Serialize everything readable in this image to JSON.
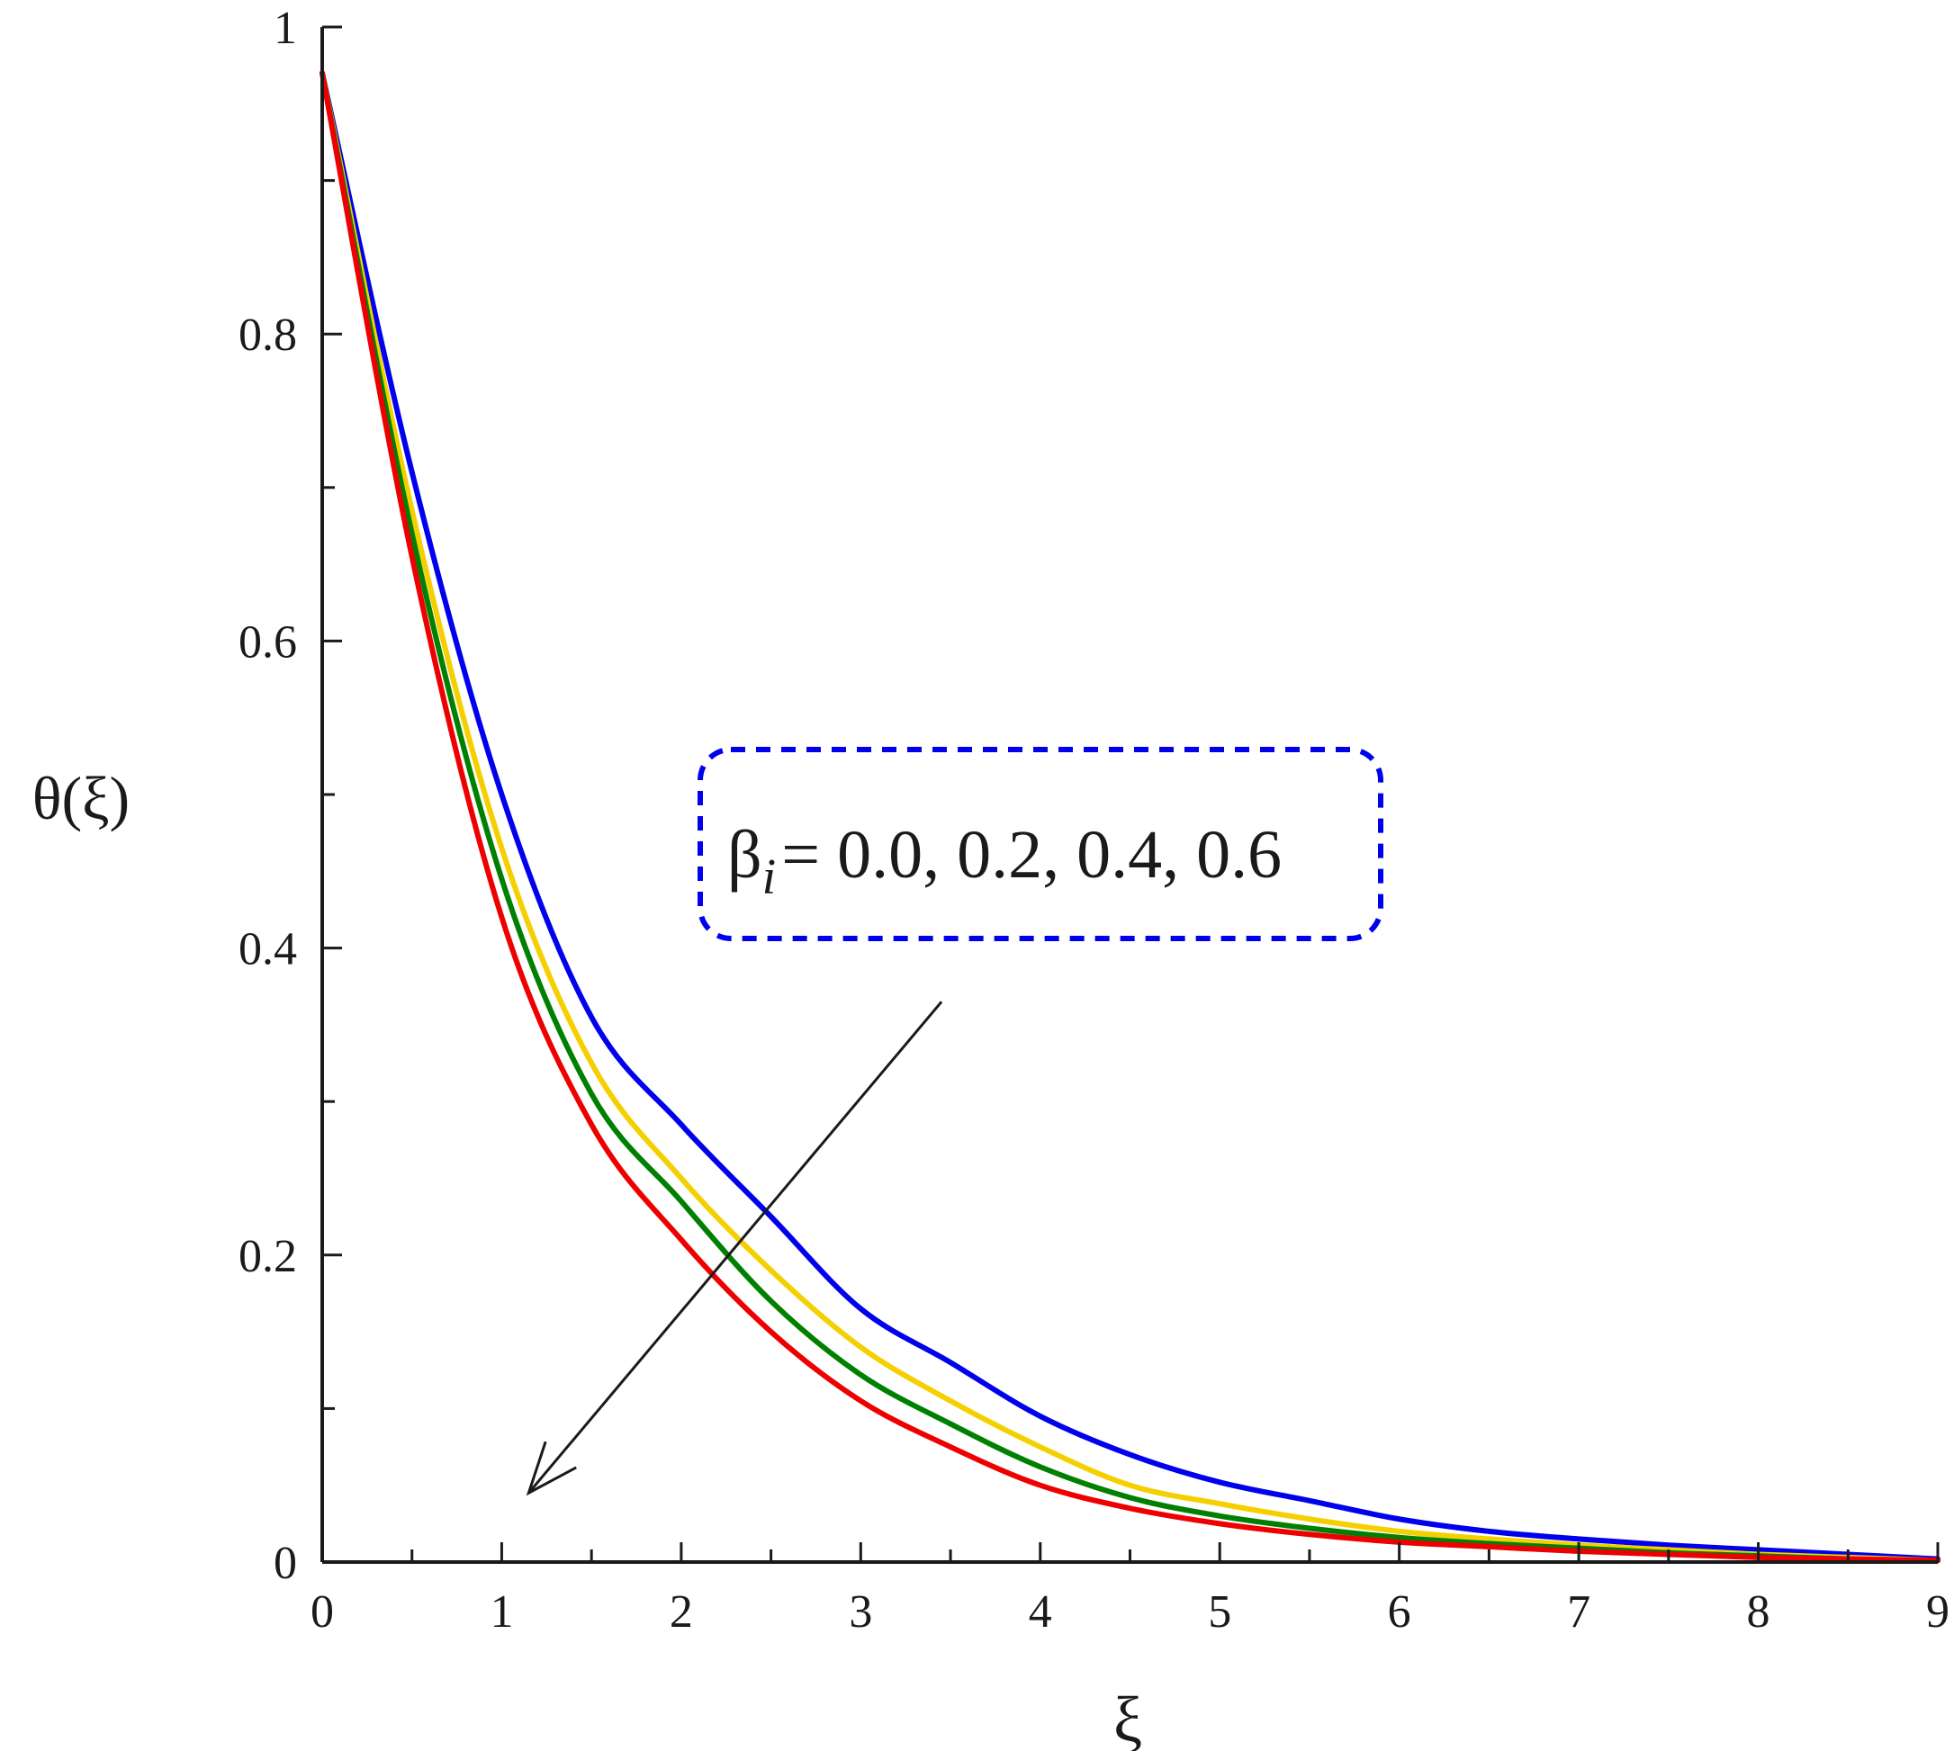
{
  "chart_data": {
    "type": "line",
    "title": "",
    "xlabel": "ξ",
    "ylabel": "θ(ξ)",
    "xlim": [
      0,
      9
    ],
    "ylim": [
      0,
      1
    ],
    "x_ticks": [
      "0",
      "1",
      "2",
      "3",
      "4",
      "5",
      "6",
      "7",
      "8",
      "9"
    ],
    "y_ticks": [
      "0",
      "0.2",
      "0.4",
      "0.6",
      "0.8",
      "1"
    ],
    "grid": false,
    "legend": "none",
    "series": [
      {
        "color": "#0000ee",
        "x": [
          0,
          0.5,
          1,
          1.5,
          2,
          2.5,
          3,
          3.5,
          4,
          4.5,
          5,
          5.5,
          6,
          6.5,
          7,
          7.5,
          8,
          8.5,
          9
        ],
        "y": [
          0.97,
          0.71,
          0.5,
          0.355,
          0.285,
          0.225,
          0.165,
          0.13,
          0.095,
          0.07,
          0.052,
          0.04,
          0.028,
          0.02,
          0.015,
          0.011,
          0.008,
          0.005,
          0.002
        ]
      },
      {
        "color": "#f5d000",
        "x": [
          0,
          0.5,
          1,
          1.5,
          2,
          2.5,
          3,
          3.5,
          4,
          4.5,
          5,
          5.5,
          6,
          6.5,
          7,
          7.5,
          8,
          8.5,
          9
        ],
        "y": [
          0.97,
          0.685,
          0.465,
          0.325,
          0.25,
          0.19,
          0.14,
          0.105,
          0.075,
          0.05,
          0.038,
          0.028,
          0.02,
          0.015,
          0.011,
          0.008,
          0.005,
          0.003,
          0.001
        ]
      },
      {
        "color": "#008000",
        "x": [
          0,
          0.5,
          1,
          1.5,
          2,
          2.5,
          3,
          3.5,
          4,
          4.5,
          5,
          5.5,
          6,
          6.5,
          7,
          7.5,
          8,
          8.5,
          9
        ],
        "y": [
          0.97,
          0.67,
          0.445,
          0.305,
          0.235,
          0.17,
          0.122,
          0.09,
          0.062,
          0.042,
          0.03,
          0.022,
          0.016,
          0.012,
          0.009,
          0.006,
          0.004,
          0.002,
          0.001
        ]
      },
      {
        "color": "#ee0000",
        "x": [
          0,
          0.5,
          1,
          1.5,
          2,
          2.5,
          3,
          3.5,
          4,
          4.5,
          5,
          5.5,
          6,
          6.5,
          7,
          7.5,
          8,
          8.5,
          9
        ],
        "y": [
          0.97,
          0.655,
          0.42,
          0.285,
          0.21,
          0.15,
          0.105,
          0.075,
          0.05,
          0.035,
          0.025,
          0.018,
          0.013,
          0.01,
          0.007,
          0.005,
          0.003,
          0.002,
          0.001
        ]
      }
    ],
    "annotation": {
      "symbol": "β",
      "subscript": "i",
      "text": "= 0.0, 0.2, 0.4, 0.6",
      "box_color": "#0000ee",
      "arrow_direction": "down-left",
      "arrow_from": [
        3.45,
        0.365
      ],
      "arrow_to": [
        1.15,
        0.045
      ]
    }
  }
}
